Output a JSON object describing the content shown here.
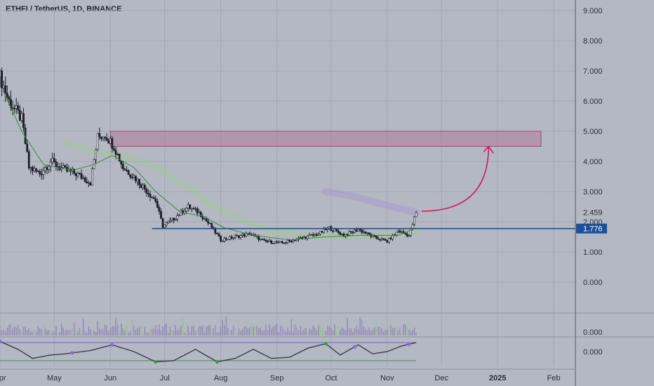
{
  "title": "ETHFI / TetherUS, 1D, BINANCE",
  "colors": {
    "background": "#b4b8c3",
    "grid": "#a3a8b4",
    "candle": "#1c1f27",
    "support_line": "#1c4fa0",
    "resistance_zone": "#b07a95",
    "arrow": "#d11a62",
    "sma": "#3e8a3e",
    "band_green": "#9fc89a",
    "band_purple": "#a79ad0",
    "oscillator_line": "#3a3d48",
    "oscillator_upper": "#7a5fc8",
    "oscillator_lower": "#3a9a4a",
    "volume": "#8a7fb0"
  },
  "chart_data": {
    "type": "candlestick",
    "title": "ETHFI / TetherUS, 1D, BINANCE",
    "y_axis": {
      "ticks": [
        "9.000",
        "8.000",
        "7.000",
        "6.000",
        "5.000",
        "4.000",
        "3.000",
        "2.000",
        "1.000",
        "0.000"
      ],
      "tick_values": [
        9,
        8,
        7,
        6,
        5,
        4,
        3,
        2,
        1,
        0
      ],
      "ylim": [
        -1.0,
        9.35
      ]
    },
    "x_axis": {
      "ticks": [
        "Apr",
        "May",
        "Jun",
        "Jul",
        "Aug",
        "Sep",
        "Oct",
        "Nov",
        "Dec",
        "2025",
        "Feb"
      ],
      "bold_ticks": [
        "2025"
      ],
      "day_range": [
        0,
        318
      ]
    },
    "current_price_label": "2.459",
    "level_label": "1.776",
    "support_level": 1.776,
    "resistance_zone": {
      "low": 4.5,
      "high": 5.0,
      "start_day": 61,
      "end_day": 299
    },
    "trend_line_start_day": 84,
    "arrow": {
      "from": {
        "day": 233,
        "price": 2.35
      },
      "to": {
        "day": 270,
        "price": 4.5
      }
    },
    "price_path": [
      {
        "day": 0,
        "price": 6.8
      },
      {
        "day": 5,
        "price": 6.0
      },
      {
        "day": 12,
        "price": 5.4
      },
      {
        "day": 16,
        "price": 3.8
      },
      {
        "day": 22,
        "price": 3.6
      },
      {
        "day": 28,
        "price": 4.0
      },
      {
        "day": 36,
        "price": 3.7
      },
      {
        "day": 42,
        "price": 3.6
      },
      {
        "day": 50,
        "price": 3.3
      },
      {
        "day": 54,
        "price": 4.8
      },
      {
        "day": 58,
        "price": 4.9
      },
      {
        "day": 63,
        "price": 4.5
      },
      {
        "day": 68,
        "price": 3.8
      },
      {
        "day": 74,
        "price": 3.5
      },
      {
        "day": 80,
        "price": 3.1
      },
      {
        "day": 86,
        "price": 2.7
      },
      {
        "day": 90,
        "price": 1.85
      },
      {
        "day": 96,
        "price": 2.1
      },
      {
        "day": 104,
        "price": 2.5
      },
      {
        "day": 110,
        "price": 2.3
      },
      {
        "day": 116,
        "price": 1.9
      },
      {
        "day": 122,
        "price": 1.4
      },
      {
        "day": 130,
        "price": 1.5
      },
      {
        "day": 138,
        "price": 1.6
      },
      {
        "day": 146,
        "price": 1.35
      },
      {
        "day": 156,
        "price": 1.3
      },
      {
        "day": 166,
        "price": 1.45
      },
      {
        "day": 176,
        "price": 1.6
      },
      {
        "day": 182,
        "price": 1.8
      },
      {
        "day": 190,
        "price": 1.55
      },
      {
        "day": 198,
        "price": 1.75
      },
      {
        "day": 206,
        "price": 1.5
      },
      {
        "day": 214,
        "price": 1.35
      },
      {
        "day": 220,
        "price": 1.7
      },
      {
        "day": 226,
        "price": 1.55
      },
      {
        "day": 230,
        "price": 2.3
      }
    ],
    "sma_path": [
      {
        "day": 2,
        "price": 6.3
      },
      {
        "day": 12,
        "price": 5.0
      },
      {
        "day": 24,
        "price": 3.9
      },
      {
        "day": 40,
        "price": 3.7
      },
      {
        "day": 52,
        "price": 3.9
      },
      {
        "day": 62,
        "price": 4.2
      },
      {
        "day": 74,
        "price": 3.8
      },
      {
        "day": 86,
        "price": 3.0
      },
      {
        "day": 100,
        "price": 2.3
      },
      {
        "day": 112,
        "price": 2.2
      },
      {
        "day": 124,
        "price": 1.8
      },
      {
        "day": 140,
        "price": 1.55
      },
      {
        "day": 160,
        "price": 1.4
      },
      {
        "day": 180,
        "price": 1.5
      },
      {
        "day": 200,
        "price": 1.55
      },
      {
        "day": 220,
        "price": 1.55
      },
      {
        "day": 230,
        "price": 1.8
      }
    ],
    "band_green_path": [
      {
        "day": 36,
        "price": 4.6
      },
      {
        "day": 52,
        "price": 4.3
      },
      {
        "day": 66,
        "price": 4.2
      },
      {
        "day": 84,
        "price": 3.9
      },
      {
        "day": 100,
        "price": 3.3
      },
      {
        "day": 116,
        "price": 2.6
      },
      {
        "day": 132,
        "price": 2.1
      },
      {
        "day": 150,
        "price": 1.7
      },
      {
        "day": 170,
        "price": 1.55
      },
      {
        "day": 190,
        "price": 1.5
      },
      {
        "day": 210,
        "price": 1.55
      },
      {
        "day": 230,
        "price": 1.65
      }
    ],
    "band_purple_path": [
      {
        "day": 180,
        "price": 3.0
      },
      {
        "day": 195,
        "price": 2.85
      },
      {
        "day": 210,
        "price": 2.6
      },
      {
        "day": 230,
        "price": 2.3
      }
    ],
    "oscillator": {
      "axis_label": "0.000",
      "upper_band": 0.8,
      "lower_band": -0.8,
      "path": [
        {
          "day": 0,
          "price": 0.9
        },
        {
          "day": 10,
          "price": 0.2
        },
        {
          "day": 18,
          "price": -0.6
        },
        {
          "day": 28,
          "price": -0.3
        },
        {
          "day": 36,
          "price": -0.2
        },
        {
          "day": 50,
          "price": 0.1
        },
        {
          "day": 62,
          "price": 0.6
        },
        {
          "day": 74,
          "price": 0.0
        },
        {
          "day": 86,
          "price": -0.9
        },
        {
          "day": 96,
          "price": -0.8
        },
        {
          "day": 108,
          "price": 0.2
        },
        {
          "day": 120,
          "price": -0.9
        },
        {
          "day": 130,
          "price": -0.6
        },
        {
          "day": 140,
          "price": 0.2
        },
        {
          "day": 150,
          "price": -0.6
        },
        {
          "day": 160,
          "price": -0.5
        },
        {
          "day": 170,
          "price": 0.3
        },
        {
          "day": 180,
          "price": 0.7
        },
        {
          "day": 188,
          "price": -0.3
        },
        {
          "day": 198,
          "price": 0.6
        },
        {
          "day": 206,
          "price": -0.2
        },
        {
          "day": 214,
          "price": 0.0
        },
        {
          "day": 222,
          "price": 0.5
        },
        {
          "day": 230,
          "price": 0.8
        }
      ]
    },
    "volume_label": "0.000"
  }
}
